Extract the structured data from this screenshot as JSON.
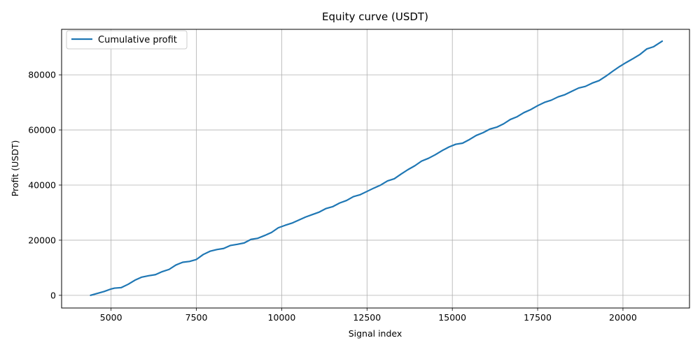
{
  "chart_data": {
    "type": "line",
    "title": "Equity curve (USDT)",
    "xlabel": "Signal index",
    "ylabel": "Profit (USDT)",
    "xlim": [
      3550,
      21950
    ],
    "ylim": [
      -4600,
      96500
    ],
    "x_ticks": [
      5000,
      7500,
      10000,
      12500,
      15000,
      17500,
      20000
    ],
    "x_tick_labels": [
      "5000",
      "7500",
      "10000",
      "12500",
      "15000",
      "17500",
      "20000"
    ],
    "y_ticks": [
      0,
      20000,
      40000,
      60000,
      80000
    ],
    "y_tick_labels": [
      "0",
      "20000",
      "40000",
      "60000",
      "80000"
    ],
    "grid": true,
    "legend_position": "upper-left",
    "colors": {
      "series": "#1f77b4",
      "grid": "#b0b0b0",
      "axes": "#000000",
      "legend_border": "#cccccc"
    },
    "series": [
      {
        "name": "Cumulative profit",
        "x": [
          4400,
          4600,
          4800,
          5000,
          5100,
          5300,
          5500,
          5700,
          5900,
          6100,
          6300,
          6500,
          6700,
          6900,
          7100,
          7300,
          7500,
          7700,
          7900,
          8100,
          8300,
          8500,
          8700,
          8900,
          9100,
          9300,
          9500,
          9700,
          9900,
          10100,
          10300,
          10500,
          10700,
          10900,
          11100,
          11300,
          11500,
          11700,
          11900,
          12100,
          12300,
          12500,
          12700,
          12900,
          13100,
          13300,
          13500,
          13700,
          13900,
          14100,
          14300,
          14500,
          14700,
          14900,
          15100,
          15300,
          15500,
          15700,
          15900,
          16100,
          16300,
          16500,
          16700,
          16900,
          17100,
          17300,
          17500,
          17700,
          17900,
          18100,
          18300,
          18500,
          18700,
          18900,
          19100,
          19300,
          19500,
          19700,
          19900,
          20100,
          20300,
          20500,
          20700,
          20900,
          21150
        ],
        "values": [
          0,
          700,
          1400,
          2300,
          2600,
          2800,
          4000,
          5500,
          6600,
          7100,
          7500,
          8600,
          9400,
          11000,
          12000,
          12300,
          13000,
          14800,
          16000,
          16600,
          17000,
          18100,
          18500,
          19000,
          20300,
          20700,
          21700,
          22800,
          24500,
          25400,
          26200,
          27300,
          28400,
          29300,
          30200,
          31500,
          32200,
          33500,
          34400,
          35800,
          36500,
          37700,
          38900,
          40000,
          41500,
          42300,
          44000,
          45600,
          47000,
          48700,
          49700,
          51000,
          52500,
          53800,
          54800,
          55200,
          56500,
          58000,
          59000,
          60300,
          61000,
          62200,
          63800,
          64800,
          66300,
          67400,
          68800,
          70000,
          70800,
          72000,
          72800,
          74000,
          75200,
          75800,
          77000,
          77900,
          79500,
          81300,
          83000,
          84500,
          85900,
          87400,
          89400,
          90200,
          92200
        ]
      }
    ]
  }
}
